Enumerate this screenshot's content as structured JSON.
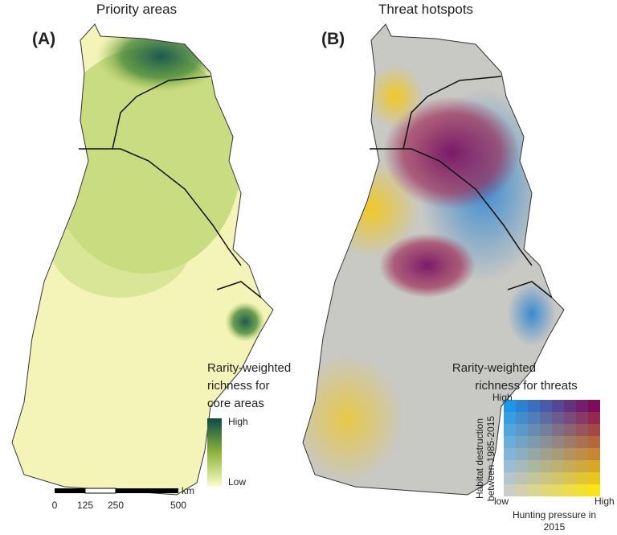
{
  "panel_a": {
    "title": "Priority areas",
    "tag": "(A)",
    "legend": {
      "title_lines": [
        "Rarity-weighted",
        "richness for",
        "core areas"
      ],
      "high": "High",
      "low": "Low"
    },
    "scale_bar": {
      "labels": [
        "0",
        "125",
        "250",
        "500"
      ],
      "unit": "km"
    }
  },
  "panel_b": {
    "title": "Threat hotspots",
    "tag": "(B)",
    "legend": {
      "title_lines": [
        "Rarity-weighted",
        "richness for threats"
      ],
      "y_axis_lines": [
        "Habitat destruction",
        "between 1985-2015"
      ],
      "y_high": "High",
      "x_low": "low",
      "x_high": "High",
      "x_axis_lines": [
        "Hunting pressure in",
        "2015"
      ]
    }
  }
}
